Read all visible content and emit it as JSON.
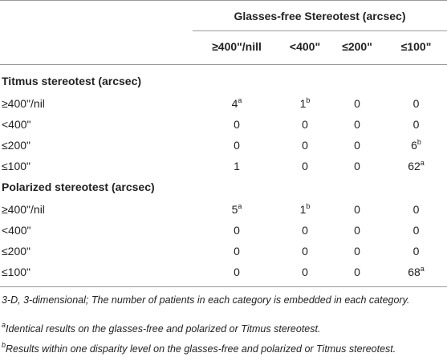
{
  "table": {
    "group_header": "Glasses-free Stereotest (arcsec)",
    "columns": [
      "≥400\"/nill",
      "<400\"",
      "≤200\"",
      "≤100\""
    ],
    "sections": [
      {
        "title": "Titmus stereotest (arcsec)",
        "rows": [
          {
            "label": "≥400\"/nil",
            "cells": [
              {
                "v": "4",
                "sup": "a"
              },
              {
                "v": "1",
                "sup": "b"
              },
              {
                "v": "0",
                "sup": ""
              },
              {
                "v": "0",
                "sup": ""
              }
            ]
          },
          {
            "label": "<400\"",
            "cells": [
              {
                "v": "0",
                "sup": ""
              },
              {
                "v": "0",
                "sup": ""
              },
              {
                "v": "0",
                "sup": ""
              },
              {
                "v": "0",
                "sup": ""
              }
            ]
          },
          {
            "label": "≤200\"",
            "cells": [
              {
                "v": "0",
                "sup": ""
              },
              {
                "v": "0",
                "sup": ""
              },
              {
                "v": "0",
                "sup": ""
              },
              {
                "v": "6",
                "sup": "b"
              }
            ]
          },
          {
            "label": "≤100\"",
            "cells": [
              {
                "v": "1",
                "sup": ""
              },
              {
                "v": "0",
                "sup": ""
              },
              {
                "v": "0",
                "sup": ""
              },
              {
                "v": "62",
                "sup": "a"
              }
            ]
          }
        ]
      },
      {
        "title": "Polarized stereotest (arcsec)",
        "rows": [
          {
            "label": "≥400\"/nil",
            "cells": [
              {
                "v": "5",
                "sup": "a"
              },
              {
                "v": "1",
                "sup": "b"
              },
              {
                "v": "0",
                "sup": ""
              },
              {
                "v": "0",
                "sup": ""
              }
            ]
          },
          {
            "label": "<400\"",
            "cells": [
              {
                "v": "0",
                "sup": ""
              },
              {
                "v": "0",
                "sup": ""
              },
              {
                "v": "0",
                "sup": ""
              },
              {
                "v": "0",
                "sup": ""
              }
            ]
          },
          {
            "label": "≤200\"",
            "cells": [
              {
                "v": "0",
                "sup": ""
              },
              {
                "v": "0",
                "sup": ""
              },
              {
                "v": "0",
                "sup": ""
              },
              {
                "v": "0",
                "sup": ""
              }
            ]
          },
          {
            "label": "≤100\"",
            "cells": [
              {
                "v": "0",
                "sup": ""
              },
              {
                "v": "0",
                "sup": ""
              },
              {
                "v": "0",
                "sup": ""
              },
              {
                "v": "68",
                "sup": "a"
              }
            ]
          }
        ]
      }
    ]
  },
  "footnotes": {
    "main": "3-D, 3-dimensional; The number of patients in each category is embedded in each category.",
    "a_mark": "a",
    "a_text": "Identical results on the glasses-free and polarized or Titmus stereotest.",
    "b_mark": "b",
    "b_text": "Results within one disparity level on the glasses-free and polarized or Titmus stereotest."
  }
}
